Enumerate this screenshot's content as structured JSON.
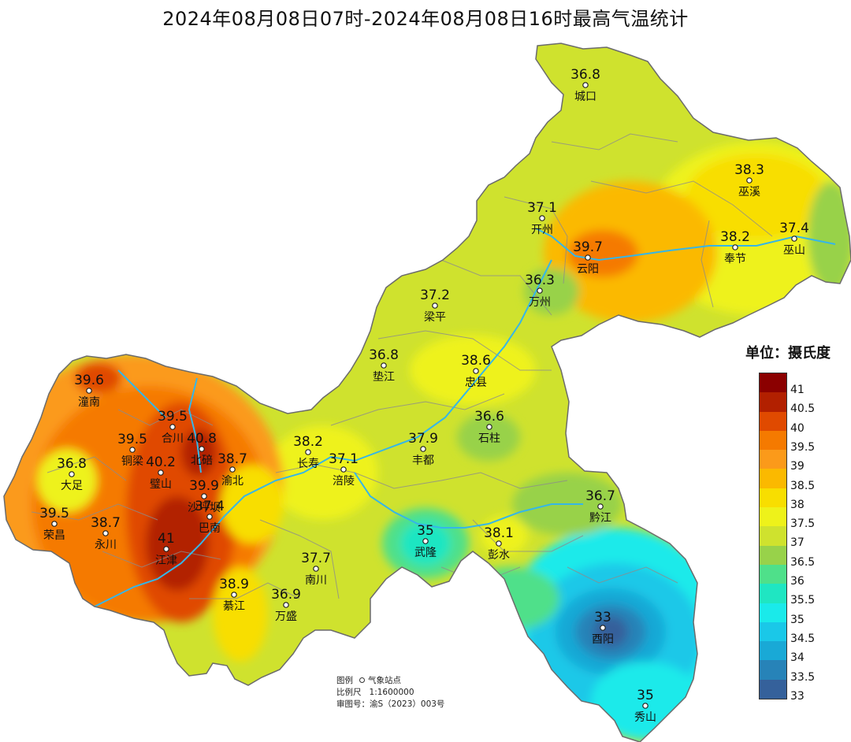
{
  "title": "2024年08月08日07时-2024年08月08日16时最高气温统计",
  "legend": {
    "title": "单位：摄氏度",
    "items": [
      {
        "value": "41",
        "color": "#8b0000"
      },
      {
        "value": "40.5",
        "color": "#b22000"
      },
      {
        "value": "40",
        "color": "#e04a00"
      },
      {
        "value": "39.5",
        "color": "#f57a00"
      },
      {
        "value": "39",
        "color": "#fb9a1a"
      },
      {
        "value": "38.5",
        "color": "#fbb900"
      },
      {
        "value": "38",
        "color": "#f8de00"
      },
      {
        "value": "37.5",
        "color": "#eef21a"
      },
      {
        "value": "37",
        "color": "#cfe22e"
      },
      {
        "value": "36.5",
        "color": "#98d24a"
      },
      {
        "value": "36",
        "color": "#4fe08a"
      },
      {
        "value": "35.5",
        "color": "#1fe6c2"
      },
      {
        "value": "35",
        "color": "#1aeaea"
      },
      {
        "value": "34.5",
        "color": "#1ac8e8"
      },
      {
        "value": "34",
        "color": "#19a9d6"
      },
      {
        "value": "33.5",
        "color": "#2783b8"
      },
      {
        "value": "33",
        "color": "#35619b"
      }
    ]
  },
  "footer": {
    "legend_label": "图例",
    "station_label": "气象站点",
    "scale_label": "比例尺",
    "scale_value": "1:1600000",
    "review_label": "审图号：渝S（2023）003号"
  },
  "stations": [
    {
      "name": "城口",
      "value": "36.8"
    },
    {
      "name": "巫溪",
      "value": "38.3"
    },
    {
      "name": "开州",
      "value": "37.1"
    },
    {
      "name": "巫山",
      "value": "37.4"
    },
    {
      "name": "奉节",
      "value": "38.2"
    },
    {
      "name": "云阳",
      "value": "39.7"
    },
    {
      "name": "万州",
      "value": "36.3"
    },
    {
      "name": "梁平",
      "value": "37.2"
    },
    {
      "name": "垫江",
      "value": "36.8"
    },
    {
      "name": "忠县",
      "value": "38.6"
    },
    {
      "name": "潼南",
      "value": "39.6"
    },
    {
      "name": "合川",
      "value": "39.5"
    },
    {
      "name": "石柱",
      "value": "36.6"
    },
    {
      "name": "铜梁",
      "value": "39.5"
    },
    {
      "name": "北碚",
      "value": "40.8"
    },
    {
      "name": "渝北",
      "value": "38.7"
    },
    {
      "name": "长寿",
      "value": "38.2"
    },
    {
      "name": "丰都",
      "value": "37.9"
    },
    {
      "name": "大足",
      "value": "36.8"
    },
    {
      "name": "涪陵",
      "value": "37.1"
    },
    {
      "name": "璧山",
      "value": "40.2"
    },
    {
      "name": "沙坪坝",
      "value": "39.9"
    },
    {
      "name": "黔江",
      "value": "36.7"
    },
    {
      "name": "荣昌",
      "value": "39.5"
    },
    {
      "name": "永川",
      "value": "38.7"
    },
    {
      "name": "巴南",
      "value": "37.4"
    },
    {
      "name": "武隆",
      "value": "35"
    },
    {
      "name": "彭水",
      "value": "38.1"
    },
    {
      "name": "江津",
      "value": "41"
    },
    {
      "name": "南川",
      "value": "37.7"
    },
    {
      "name": "綦江",
      "value": "38.9"
    },
    {
      "name": "万盛",
      "value": "36.9"
    },
    {
      "name": "酉阳",
      "value": "33"
    },
    {
      "name": "秀山",
      "value": "35"
    }
  ]
}
